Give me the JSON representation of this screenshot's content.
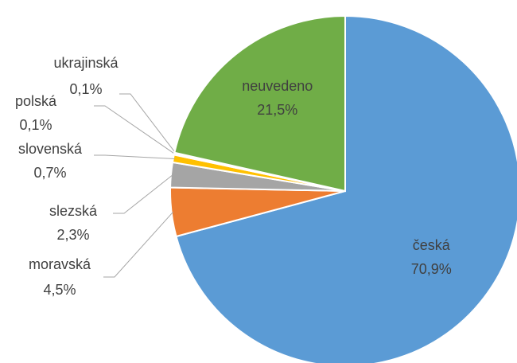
{
  "chart_data": {
    "type": "pie",
    "categories": [
      "česká",
      "moravská",
      "slezská",
      "slovenská",
      "polská",
      "ukrajinská",
      "neuvedeno"
    ],
    "values": [
      70.9,
      4.5,
      2.3,
      0.7,
      0.1,
      0.1,
      21.5
    ],
    "value_labels": [
      "70,9%",
      "4,5%",
      "2,3%",
      "0,7%",
      "0,1%",
      "0,1%",
      "21,5%"
    ],
    "colors": [
      "#5b9bd5",
      "#ed7d31",
      "#a5a5a5",
      "#ffc000",
      "#4472c4",
      "#255e91",
      "#70ad47"
    ]
  }
}
